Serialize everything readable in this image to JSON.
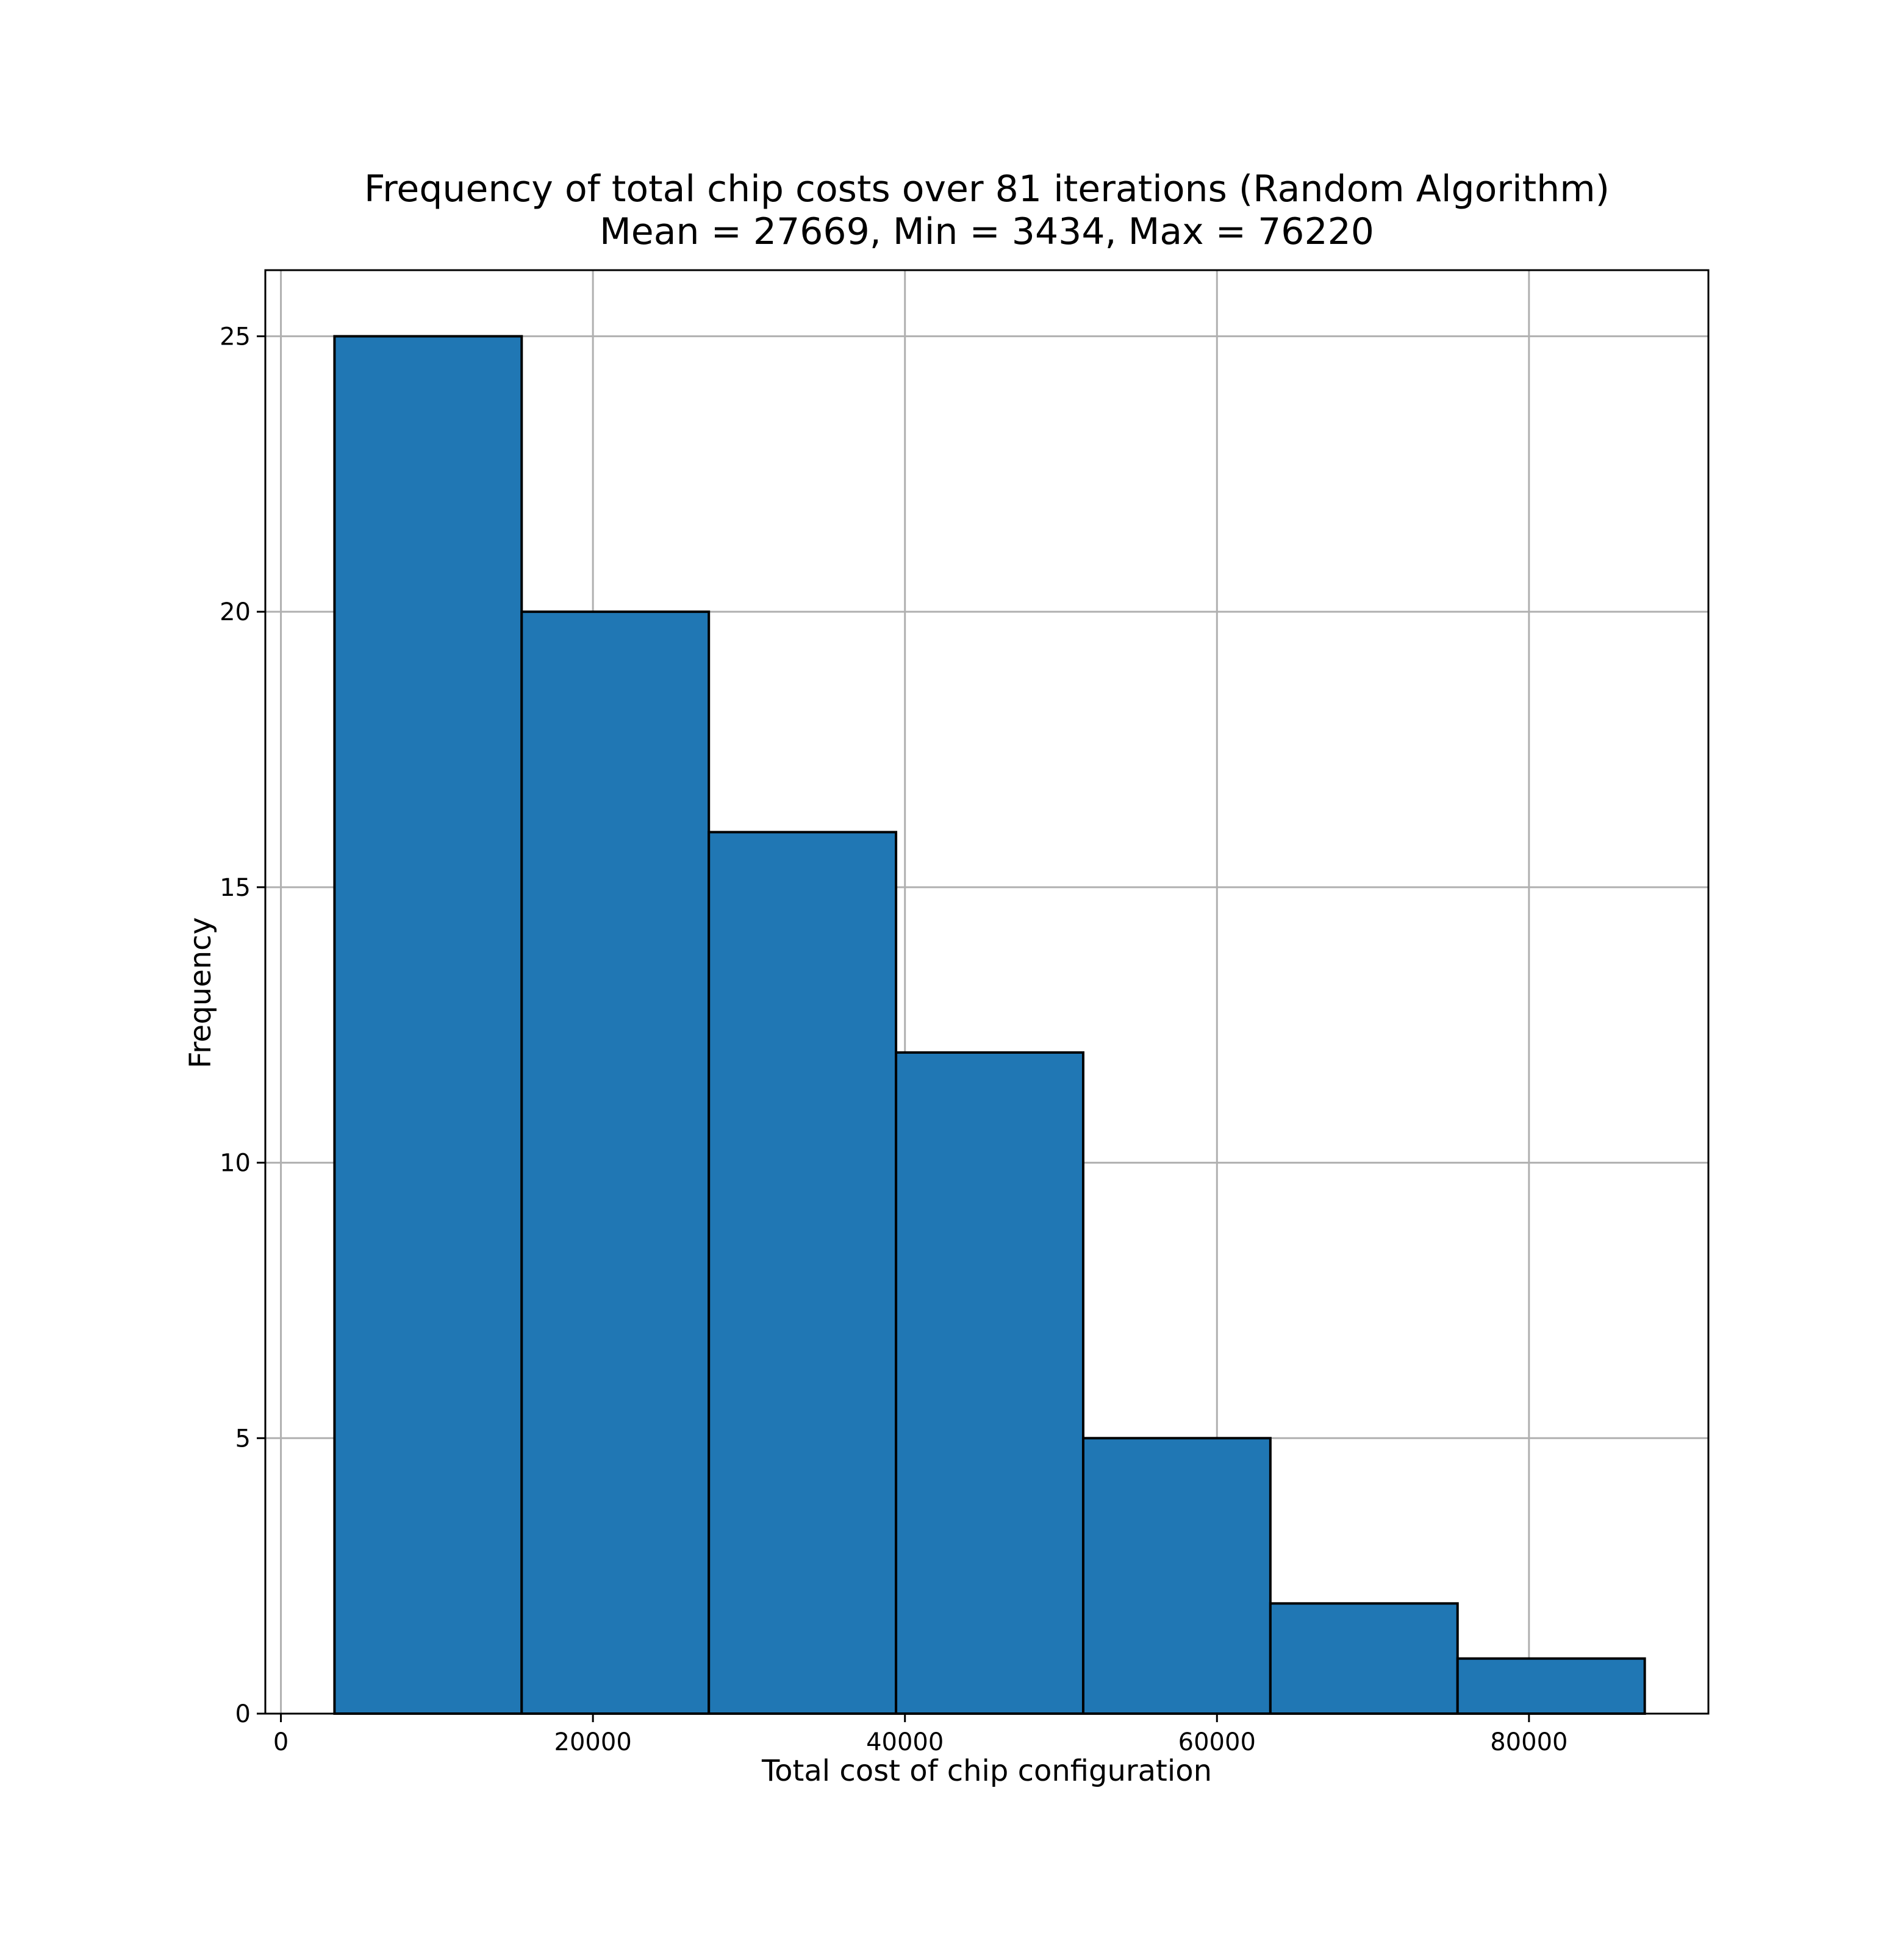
{
  "chart_data": {
    "type": "bar",
    "title": "Frequency of total chip costs over 81 iterations (Random Algorithm)",
    "subtitle": "Mean = 27669, Min = 3434, Max = 76220",
    "xlabel": "Total cost of chip configuration",
    "ylabel": "Frequency",
    "xlim": [
      -1000,
      91500
    ],
    "ylim": [
      0,
      26.2
    ],
    "x_ticks": [
      0,
      20000,
      40000,
      60000,
      80000
    ],
    "x_tick_labels": [
      "0",
      "20000",
      "40000",
      "60000",
      "80000"
    ],
    "y_ticks": [
      0,
      5,
      10,
      15,
      20,
      25
    ],
    "y_tick_labels": [
      "0",
      "5",
      "10",
      "15",
      "20",
      "25"
    ],
    "grid": true,
    "bins": [
      {
        "x0": 3434,
        "x1": 15432,
        "count": 25
      },
      {
        "x0": 15432,
        "x1": 27430,
        "count": 20
      },
      {
        "x0": 27430,
        "x1": 39428,
        "count": 16
      },
      {
        "x0": 39428,
        "x1": 51426,
        "count": 12
      },
      {
        "x0": 51426,
        "x1": 63424,
        "count": 5
      },
      {
        "x0": 63424,
        "x1": 75422,
        "count": 2
      },
      {
        "x0": 75422,
        "x1": 87420,
        "count": 1
      }
    ],
    "colors": {
      "bar_fill": "#2077b4",
      "bar_edge": "#000000",
      "grid": "#b0b0b0",
      "axes": "#000000"
    }
  }
}
